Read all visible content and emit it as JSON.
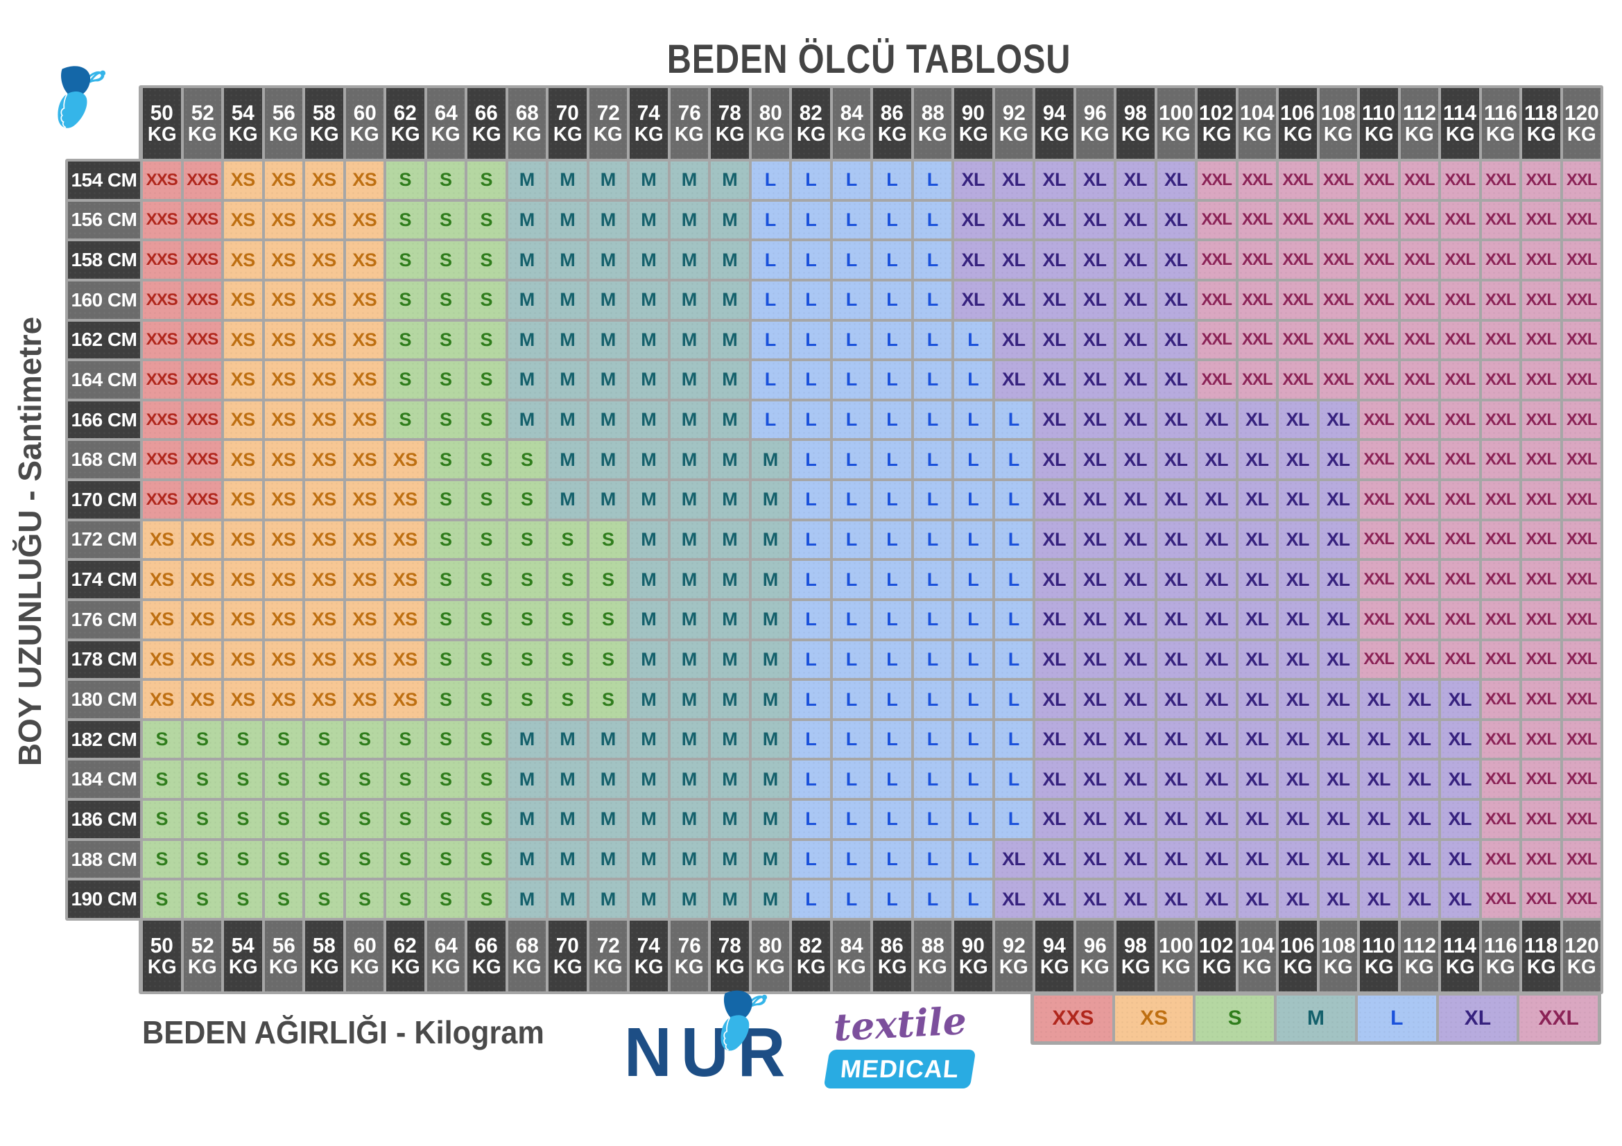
{
  "title_note": "size chart poster",
  "chart_data": {
    "type": "table",
    "title": "BEDEN ÖLCÜ TABLOSU",
    "x_axis_label": "BEDEN AĞIRLIĞI - Kilogram",
    "y_axis_label": "BOY UZUNLUĞU - Santimetre",
    "x_unit": "KG",
    "y_unit": "CM",
    "legend": [
      "XXS",
      "XS",
      "S",
      "M",
      "L",
      "XL",
      "XXL"
    ],
    "weights_kg": [
      50,
      52,
      54,
      56,
      58,
      60,
      62,
      64,
      66,
      68,
      70,
      72,
      74,
      76,
      78,
      80,
      82,
      84,
      86,
      88,
      90,
      92,
      94,
      96,
      98,
      100,
      102,
      104,
      106,
      108,
      110,
      112,
      114,
      116,
      118,
      120
    ],
    "heights_cm": [
      154,
      156,
      158,
      160,
      162,
      164,
      166,
      168,
      170,
      172,
      174,
      176,
      178,
      180,
      182,
      184,
      186,
      188,
      190
    ],
    "rows": [
      {
        "height_cm": 154,
        "sizes": [
          "XXS",
          "XXS",
          "XS",
          "XS",
          "XS",
          "XS",
          "S",
          "S",
          "S",
          "M",
          "M",
          "M",
          "M",
          "M",
          "M",
          "L",
          "L",
          "L",
          "L",
          "L",
          "XL",
          "XL",
          "XL",
          "XL",
          "XL",
          "XL",
          "XXL",
          "XXL",
          "XXL",
          "XXL",
          "XXL",
          "XXL",
          "XXL",
          "XXL",
          "XXL",
          "XXL"
        ]
      },
      {
        "height_cm": 156,
        "sizes": [
          "XXS",
          "XXS",
          "XS",
          "XS",
          "XS",
          "XS",
          "S",
          "S",
          "S",
          "M",
          "M",
          "M",
          "M",
          "M",
          "M",
          "L",
          "L",
          "L",
          "L",
          "L",
          "XL",
          "XL",
          "XL",
          "XL",
          "XL",
          "XL",
          "XXL",
          "XXL",
          "XXL",
          "XXL",
          "XXL",
          "XXL",
          "XXL",
          "XXL",
          "XXL",
          "XXL"
        ]
      },
      {
        "height_cm": 158,
        "sizes": [
          "XXS",
          "XXS",
          "XS",
          "XS",
          "XS",
          "XS",
          "S",
          "S",
          "S",
          "M",
          "M",
          "M",
          "M",
          "M",
          "M",
          "L",
          "L",
          "L",
          "L",
          "L",
          "XL",
          "XL",
          "XL",
          "XL",
          "XL",
          "XL",
          "XXL",
          "XXL",
          "XXL",
          "XXL",
          "XXL",
          "XXL",
          "XXL",
          "XXL",
          "XXL",
          "XXL"
        ]
      },
      {
        "height_cm": 160,
        "sizes": [
          "XXS",
          "XXS",
          "XS",
          "XS",
          "XS",
          "XS",
          "S",
          "S",
          "S",
          "M",
          "M",
          "M",
          "M",
          "M",
          "M",
          "L",
          "L",
          "L",
          "L",
          "L",
          "XL",
          "XL",
          "XL",
          "XL",
          "XL",
          "XL",
          "XXL",
          "XXL",
          "XXL",
          "XXL",
          "XXL",
          "XXL",
          "XXL",
          "XXL",
          "XXL",
          "XXL"
        ]
      },
      {
        "height_cm": 162,
        "sizes": [
          "XXS",
          "XXS",
          "XS",
          "XS",
          "XS",
          "XS",
          "S",
          "S",
          "S",
          "M",
          "M",
          "M",
          "M",
          "M",
          "M",
          "L",
          "L",
          "L",
          "L",
          "L",
          "L",
          "XL",
          "XL",
          "XL",
          "XL",
          "XL",
          "XXL",
          "XXL",
          "XXL",
          "XXL",
          "XXL",
          "XXL",
          "XXL",
          "XXL",
          "XXL",
          "XXL"
        ]
      },
      {
        "height_cm": 164,
        "sizes": [
          "XXS",
          "XXS",
          "XS",
          "XS",
          "XS",
          "XS",
          "S",
          "S",
          "S",
          "M",
          "M",
          "M",
          "M",
          "M",
          "M",
          "L",
          "L",
          "L",
          "L",
          "L",
          "L",
          "XL",
          "XL",
          "XL",
          "XL",
          "XL",
          "XXL",
          "XXL",
          "XXL",
          "XXL",
          "XXL",
          "XXL",
          "XXL",
          "XXL",
          "XXL",
          "XXL"
        ]
      },
      {
        "height_cm": 166,
        "sizes": [
          "XXS",
          "XXS",
          "XS",
          "XS",
          "XS",
          "XS",
          "S",
          "S",
          "S",
          "M",
          "M",
          "M",
          "M",
          "M",
          "M",
          "L",
          "L",
          "L",
          "L",
          "L",
          "L",
          "L",
          "XL",
          "XL",
          "XL",
          "XL",
          "XL",
          "XL",
          "XL",
          "XL",
          "XXL",
          "XXL",
          "XXL",
          "XXL",
          "XXL",
          "XXL"
        ]
      },
      {
        "height_cm": 168,
        "sizes": [
          "XXS",
          "XXS",
          "XS",
          "XS",
          "XS",
          "XS",
          "XS",
          "S",
          "S",
          "S",
          "M",
          "M",
          "M",
          "M",
          "M",
          "M",
          "L",
          "L",
          "L",
          "L",
          "L",
          "L",
          "XL",
          "XL",
          "XL",
          "XL",
          "XL",
          "XL",
          "XL",
          "XL",
          "XXL",
          "XXL",
          "XXL",
          "XXL",
          "XXL",
          "XXL"
        ]
      },
      {
        "height_cm": 170,
        "sizes": [
          "XXS",
          "XXS",
          "XS",
          "XS",
          "XS",
          "XS",
          "XS",
          "S",
          "S",
          "S",
          "M",
          "M",
          "M",
          "M",
          "M",
          "M",
          "L",
          "L",
          "L",
          "L",
          "L",
          "L",
          "XL",
          "XL",
          "XL",
          "XL",
          "XL",
          "XL",
          "XL",
          "XL",
          "XXL",
          "XXL",
          "XXL",
          "XXL",
          "XXL",
          "XXL"
        ]
      },
      {
        "height_cm": 172,
        "sizes": [
          "XS",
          "XS",
          "XS",
          "XS",
          "XS",
          "XS",
          "XS",
          "S",
          "S",
          "S",
          "S",
          "S",
          "M",
          "M",
          "M",
          "M",
          "L",
          "L",
          "L",
          "L",
          "L",
          "L",
          "XL",
          "XL",
          "XL",
          "XL",
          "XL",
          "XL",
          "XL",
          "XL",
          "XXL",
          "XXL",
          "XXL",
          "XXL",
          "XXL",
          "XXL"
        ]
      },
      {
        "height_cm": 174,
        "sizes": [
          "XS",
          "XS",
          "XS",
          "XS",
          "XS",
          "XS",
          "XS",
          "S",
          "S",
          "S",
          "S",
          "S",
          "M",
          "M",
          "M",
          "M",
          "L",
          "L",
          "L",
          "L",
          "L",
          "L",
          "XL",
          "XL",
          "XL",
          "XL",
          "XL",
          "XL",
          "XL",
          "XL",
          "XXL",
          "XXL",
          "XXL",
          "XXL",
          "XXL",
          "XXL"
        ]
      },
      {
        "height_cm": 176,
        "sizes": [
          "XS",
          "XS",
          "XS",
          "XS",
          "XS",
          "XS",
          "XS",
          "S",
          "S",
          "S",
          "S",
          "S",
          "M",
          "M",
          "M",
          "M",
          "L",
          "L",
          "L",
          "L",
          "L",
          "L",
          "XL",
          "XL",
          "XL",
          "XL",
          "XL",
          "XL",
          "XL",
          "XL",
          "XXL",
          "XXL",
          "XXL",
          "XXL",
          "XXL",
          "XXL"
        ]
      },
      {
        "height_cm": 178,
        "sizes": [
          "XS",
          "XS",
          "XS",
          "XS",
          "XS",
          "XS",
          "XS",
          "S",
          "S",
          "S",
          "S",
          "S",
          "M",
          "M",
          "M",
          "M",
          "L",
          "L",
          "L",
          "L",
          "L",
          "L",
          "XL",
          "XL",
          "XL",
          "XL",
          "XL",
          "XL",
          "XL",
          "XL",
          "XXL",
          "XXL",
          "XXL",
          "XXL",
          "XXL",
          "XXL"
        ]
      },
      {
        "height_cm": 180,
        "sizes": [
          "XS",
          "XS",
          "XS",
          "XS",
          "XS",
          "XS",
          "XS",
          "S",
          "S",
          "S",
          "S",
          "S",
          "M",
          "M",
          "M",
          "M",
          "L",
          "L",
          "L",
          "L",
          "L",
          "L",
          "XL",
          "XL",
          "XL",
          "XL",
          "XL",
          "XL",
          "XL",
          "XL",
          "XL",
          "XL",
          "XL",
          "XXL",
          "XXL",
          "XXL"
        ]
      },
      {
        "height_cm": 182,
        "sizes": [
          "S",
          "S",
          "S",
          "S",
          "S",
          "S",
          "S",
          "S",
          "S",
          "M",
          "M",
          "M",
          "M",
          "M",
          "M",
          "M",
          "L",
          "L",
          "L",
          "L",
          "L",
          "L",
          "XL",
          "XL",
          "XL",
          "XL",
          "XL",
          "XL",
          "XL",
          "XL",
          "XL",
          "XL",
          "XL",
          "XXL",
          "XXL",
          "XXL"
        ]
      },
      {
        "height_cm": 184,
        "sizes": [
          "S",
          "S",
          "S",
          "S",
          "S",
          "S",
          "S",
          "S",
          "S",
          "M",
          "M",
          "M",
          "M",
          "M",
          "M",
          "M",
          "L",
          "L",
          "L",
          "L",
          "L",
          "L",
          "XL",
          "XL",
          "XL",
          "XL",
          "XL",
          "XL",
          "XL",
          "XL",
          "XL",
          "XL",
          "XL",
          "XXL",
          "XXL",
          "XXL"
        ]
      },
      {
        "height_cm": 186,
        "sizes": [
          "S",
          "S",
          "S",
          "S",
          "S",
          "S",
          "S",
          "S",
          "S",
          "M",
          "M",
          "M",
          "M",
          "M",
          "M",
          "M",
          "L",
          "L",
          "L",
          "L",
          "L",
          "L",
          "XL",
          "XL",
          "XL",
          "XL",
          "XL",
          "XL",
          "XL",
          "XL",
          "XL",
          "XL",
          "XL",
          "XXL",
          "XXL",
          "XXL"
        ]
      },
      {
        "height_cm": 188,
        "sizes": [
          "S",
          "S",
          "S",
          "S",
          "S",
          "S",
          "S",
          "S",
          "S",
          "M",
          "M",
          "M",
          "M",
          "M",
          "M",
          "M",
          "L",
          "L",
          "L",
          "L",
          "L",
          "XL",
          "XL",
          "XL",
          "XL",
          "XL",
          "XL",
          "XL",
          "XL",
          "XL",
          "XL",
          "XL",
          "XL",
          "XXL",
          "XXL",
          "XXL"
        ]
      },
      {
        "height_cm": 190,
        "sizes": [
          "S",
          "S",
          "S",
          "S",
          "S",
          "S",
          "S",
          "S",
          "S",
          "M",
          "M",
          "M",
          "M",
          "M",
          "M",
          "M",
          "L",
          "L",
          "L",
          "L",
          "L",
          "XL",
          "XL",
          "XL",
          "XL",
          "XL",
          "XL",
          "XL",
          "XL",
          "XL",
          "XL",
          "XL",
          "XL",
          "XXL",
          "XXL",
          "XXL"
        ]
      }
    ]
  },
  "logo": {
    "name": "NUR",
    "line1": "textile",
    "line2": "MEDICAL"
  },
  "styles": {
    "frame": "#a6a6a6",
    "header_dark": "#3e3e3e",
    "header_light": "#6b6b6b",
    "header_text": "#ffffff",
    "title_color": "#444444",
    "label_color": "#4a4a4a",
    "logo_navy": "#1d4e85",
    "logo_purple": "#7c4f9c",
    "logo_blue": "#29abe2",
    "butterfly_dark": "#1467a8",
    "butterfly_light": "#35b5e9",
    "sizes": {
      "XXS": {
        "bg": "#e79b9b",
        "fg": "#b0261c"
      },
      "XS": {
        "bg": "#f7c794",
        "fg": "#be6f11"
      },
      "S": {
        "bg": "#b5d7a2",
        "fg": "#2f7d1c"
      },
      "M": {
        "bg": "#a2c3c3",
        "fg": "#14606b"
      },
      "L": {
        "bg": "#aac7f4",
        "fg": "#1a51db"
      },
      "XL": {
        "bg": "#b7abde",
        "fg": "#36217e"
      },
      "XXL": {
        "bg": "#daa7c1",
        "fg": "#8b2256"
      }
    }
  }
}
